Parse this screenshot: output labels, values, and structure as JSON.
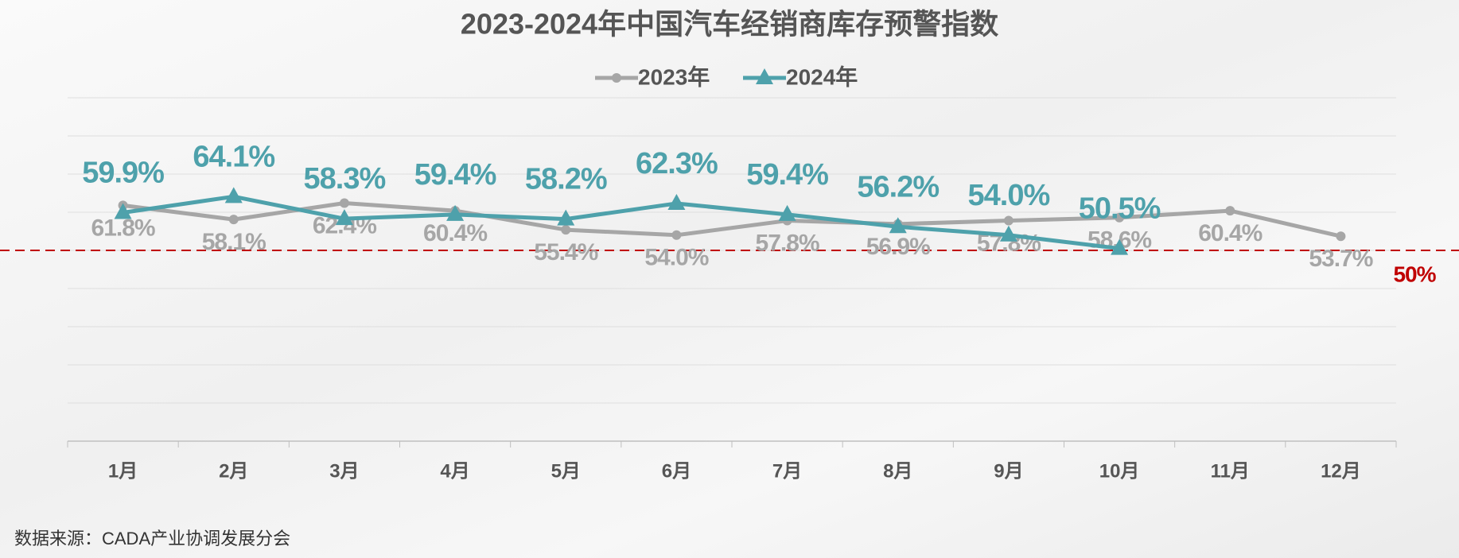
{
  "chart_data": {
    "type": "line",
    "title": "2023-2024年中国汽车经销商库存预警指数",
    "categories": [
      "1月",
      "2月",
      "3月",
      "4月",
      "5月",
      "6月",
      "7月",
      "8月",
      "9月",
      "10月",
      "11月",
      "12月"
    ],
    "series": [
      {
        "name": "2023年",
        "color": "#a6a6a6",
        "marker": "circle",
        "values": [
          61.8,
          58.1,
          62.4,
          60.4,
          55.4,
          54.0,
          57.8,
          56.9,
          57.8,
          58.6,
          60.4,
          53.7
        ],
        "value_labels": [
          "61.8%",
          "58.1%",
          "62.4%",
          "60.4%",
          "55.4%",
          "54.0%",
          "57.8%",
          "56.9%",
          "57.8%",
          "58.6%",
          "60.4%",
          "53.7%"
        ]
      },
      {
        "name": "2024年",
        "color": "#4ea1ab",
        "marker": "triangle",
        "values": [
          59.9,
          64.1,
          58.3,
          59.4,
          58.2,
          62.3,
          59.4,
          56.2,
          54.0,
          50.5,
          null,
          null
        ],
        "value_labels": [
          "59.9%",
          "64.1%",
          "58.3%",
          "59.4%",
          "58.2%",
          "62.3%",
          "59.4%",
          "56.2%",
          "54.0%",
          "50.5%",
          null,
          null
        ]
      }
    ],
    "ylim": [
      0,
      90
    ],
    "yticks": [
      0,
      10,
      20,
      30,
      40,
      50,
      60,
      70,
      80,
      90
    ],
    "show_ytick_labels": false,
    "grid": true,
    "legend": "top",
    "reference_line": {
      "value": 50,
      "label": "50%",
      "color": "#c00000"
    },
    "source": "数据来源：CADA产业协调发展分会"
  }
}
